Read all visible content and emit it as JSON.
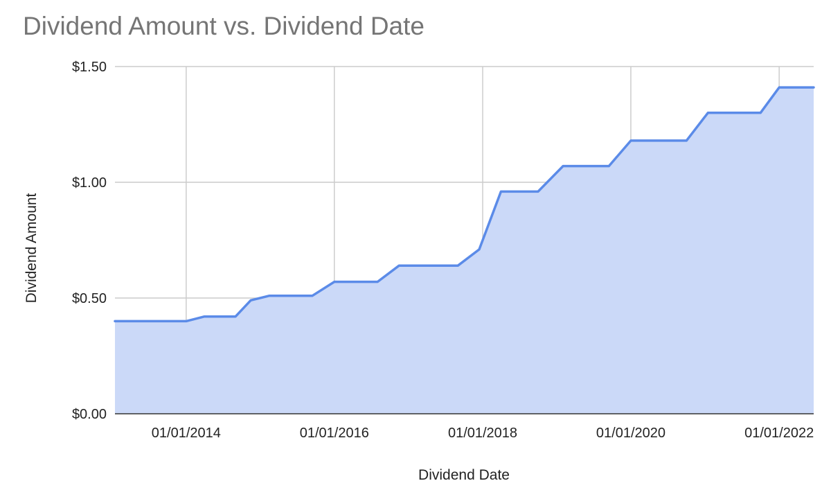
{
  "chart_data": {
    "type": "area",
    "title": "Dividend Amount vs. Dividend Date",
    "xlabel": "Dividend Date",
    "ylabel": "Dividend Amount",
    "x_range": [
      "2013-01-15",
      "2022-06-20"
    ],
    "ylim": [
      0,
      1.5
    ],
    "y_ticks": [
      {
        "value": 0,
        "label": "$0.00"
      },
      {
        "value": 0.5,
        "label": "$0.50"
      },
      {
        "value": 1.0,
        "label": "$1.00"
      },
      {
        "value": 1.5,
        "label": "$1.50"
      }
    ],
    "x_ticks": [
      {
        "value": "2014-01-01",
        "label": "01/01/2014"
      },
      {
        "value": "2016-01-01",
        "label": "01/01/2016"
      },
      {
        "value": "2018-01-01",
        "label": "01/01/2018"
      },
      {
        "value": "2020-01-01",
        "label": "01/01/2020"
      },
      {
        "value": "2022-01-01",
        "label": "01/01/2022"
      }
    ],
    "grid": true,
    "colors": {
      "line": "#5b8be8",
      "fill": "#cbd9f8"
    },
    "series": [
      {
        "x": [
          "2013-01-15",
          "2014-01-01",
          "2014-04-01",
          "2014-09-01",
          "2014-11-15",
          "2015-02-15",
          "2015-09-15",
          "2016-01-01",
          "2016-08-01",
          "2016-11-15",
          "2017-09-01",
          "2017-12-15",
          "2018-04-01",
          "2018-10-01",
          "2019-02-01",
          "2019-09-15",
          "2020-01-01",
          "2020-10-01",
          "2021-01-15",
          "2021-10-01",
          "2022-01-01",
          "2022-06-20"
        ],
        "y": [
          0.4,
          0.4,
          0.42,
          0.42,
          0.49,
          0.51,
          0.51,
          0.57,
          0.57,
          0.64,
          0.64,
          0.71,
          0.96,
          0.96,
          1.07,
          1.07,
          1.18,
          1.18,
          1.3,
          1.3,
          1.41,
          1.41
        ]
      }
    ]
  }
}
